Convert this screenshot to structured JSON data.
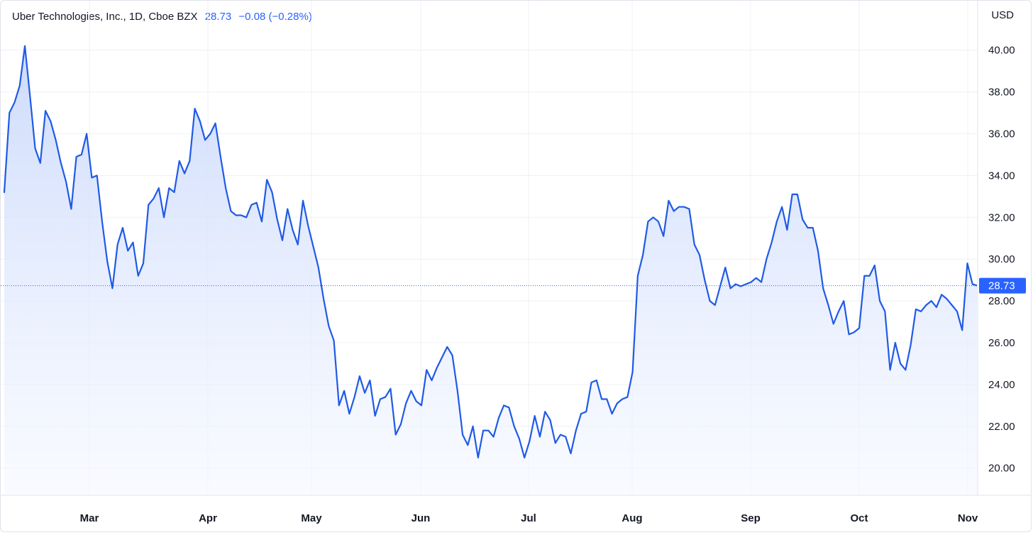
{
  "header": {
    "symbol": "Uber Technologies, Inc., 1D, Cboe BZX",
    "last_price": "28.73",
    "change": "−0.08 (−0.28%)"
  },
  "currency": "USD",
  "colors": {
    "line": "#1f5ae6",
    "fill_top": "#c8d7fb",
    "fill_bottom": "#f5f8ff",
    "grid": "#eef0f3",
    "last_price_tag": "#2962ff"
  },
  "chart_data": {
    "type": "area",
    "title": "Uber Technologies, Inc., 1D, Cboe BZX",
    "ylabel": "USD",
    "ylim": [
      18.7,
      42.4
    ],
    "grid": true,
    "y_ticks": [
      "20.00",
      "22.00",
      "24.00",
      "26.00",
      "28.00",
      "30.00",
      "32.00",
      "34.00",
      "36.00",
      "38.00",
      "40.00"
    ],
    "x_ticks": [
      "Mar",
      "Apr",
      "May",
      "Jun",
      "Jul",
      "Aug",
      "Sep",
      "Oct",
      "Nov"
    ],
    "last_value": 28.73,
    "last_value_label": "28.73",
    "series": [
      {
        "values": [
          33.2,
          37.0,
          37.5,
          38.3,
          40.2,
          37.8,
          35.3,
          34.6,
          37.1,
          36.6,
          35.7,
          34.6,
          33.7,
          32.4,
          34.9,
          35.0,
          36.0,
          33.9,
          34.0,
          31.8,
          29.9,
          28.6,
          30.7,
          31.5,
          30.4,
          30.8,
          29.2,
          29.8,
          32.6,
          32.9,
          33.4,
          32.0,
          33.4,
          33.2,
          34.7,
          34.1,
          34.7,
          37.2,
          36.6,
          35.7,
          36.0,
          36.5,
          34.9,
          33.4,
          32.3,
          32.1,
          32.1,
          32.0,
          32.6,
          32.7,
          31.8,
          33.8,
          33.2,
          31.9,
          30.9,
          32.4,
          31.4,
          30.7,
          32.8,
          31.6,
          30.6,
          29.6,
          28.1,
          26.8,
          26.1,
          23.0,
          23.7,
          22.6,
          23.4,
          24.4,
          23.6,
          24.2,
          22.5,
          23.3,
          23.4,
          23.8,
          21.6,
          22.1,
          23.1,
          23.7,
          23.2,
          23.0,
          24.7,
          24.2,
          24.8,
          25.3,
          25.8,
          25.4,
          23.7,
          21.6,
          21.1,
          22.0,
          20.5,
          21.8,
          21.8,
          21.5,
          22.4,
          23.0,
          22.9,
          22.0,
          21.4,
          20.5,
          21.3,
          22.5,
          21.5,
          22.7,
          22.3,
          21.2,
          21.6,
          21.5,
          20.7,
          21.8,
          22.6,
          22.7,
          24.1,
          24.2,
          23.3,
          23.3,
          22.6,
          23.1,
          23.3,
          23.4,
          24.6,
          29.2,
          30.2,
          31.8,
          32.0,
          31.8,
          31.1,
          32.8,
          32.3,
          32.5,
          32.5,
          32.4,
          30.7,
          30.2,
          29.0,
          28.0,
          27.8,
          28.7,
          29.6,
          28.6,
          28.8,
          28.7,
          28.8,
          28.9,
          29.1,
          28.9,
          30.0,
          30.8,
          31.8,
          32.5,
          31.4,
          33.1,
          33.1,
          31.9,
          31.5,
          31.5,
          30.4,
          28.6,
          27.8,
          26.9,
          27.5,
          28.0,
          26.4,
          26.5,
          26.7,
          29.2,
          29.2,
          29.7,
          28.0,
          27.5,
          24.7,
          26.0,
          25.0,
          24.7,
          25.9,
          27.6,
          27.5,
          27.8,
          28.0,
          27.7,
          28.3,
          28.1,
          27.8,
          27.5,
          26.6,
          29.8,
          28.8,
          28.73
        ]
      }
    ]
  }
}
